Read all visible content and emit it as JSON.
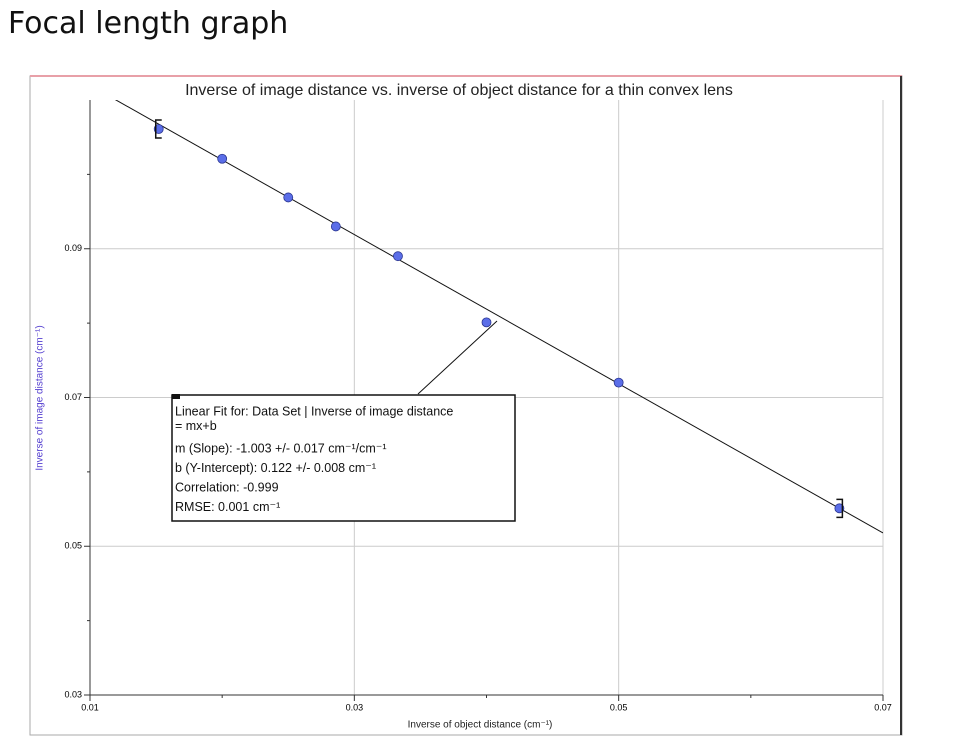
{
  "header": {
    "title": "Focal length graph"
  },
  "chart_data": {
    "type": "scatter",
    "title": "Inverse of image distance vs. inverse of object distance for a thin convex lens",
    "x_label": "Inverse of object distance (cm⁻¹)",
    "y_label": "Inverse of image distance (cm⁻¹)",
    "series": [
      {
        "name": "Data Set",
        "color": "#5b6ee8",
        "x": [
          0.0152,
          0.02,
          0.025,
          0.0286,
          0.0333,
          0.04,
          0.05,
          0.0667
        ],
        "values": [
          0.1061,
          0.1021,
          0.0969,
          0.093,
          0.089,
          0.0801,
          0.072,
          0.0551
        ]
      }
    ],
    "fit": {
      "slope": -1.003,
      "intercept": 0.122
    },
    "annotation": [
      "Linear Fit for: Data Set | Inverse of image distance",
      " = mx+b",
      "m (Slope): -1.003 +/- 0.017 cm⁻¹/cm⁻¹",
      "b (Y-Intercept): 0.122 +/- 0.008 cm⁻¹",
      "Correlation: -0.999",
      "RMSE: 0.001 cm⁻¹"
    ],
    "xlim": [
      0.01,
      0.07
    ],
    "xticks": [
      0.01,
      0.03,
      0.05,
      0.07
    ],
    "xminor": [
      0.02,
      0.04,
      0.06
    ],
    "ylim": [
      0.03,
      0.11
    ],
    "yticks": [
      0.03,
      0.05,
      0.07,
      0.09
    ],
    "yminor": [
      0.04,
      0.06,
      0.08,
      0.1
    ],
    "grid": true
  }
}
